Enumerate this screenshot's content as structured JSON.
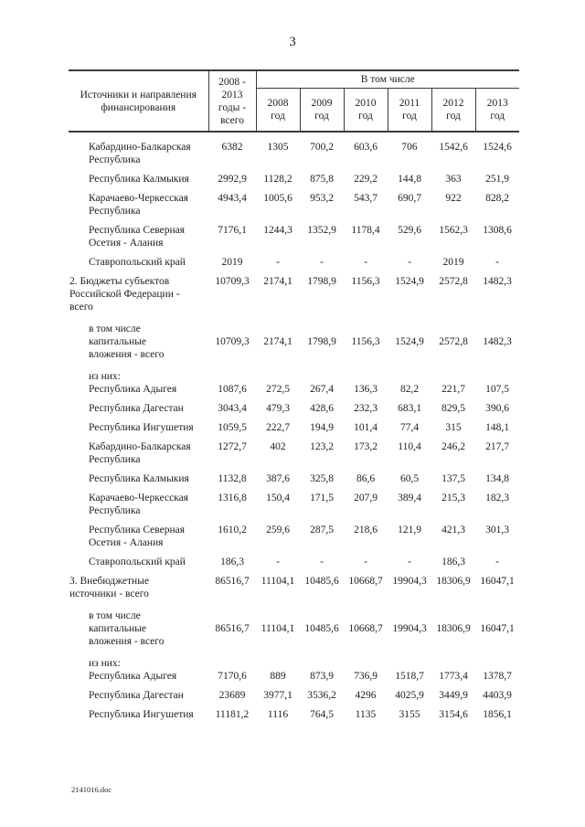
{
  "page": {
    "number": "3",
    "footer": "2141016.doc"
  },
  "table": {
    "header": {
      "col1": "Источники и направления\nфинансирования",
      "col2": "2008 -\n2013\nгоды -\nвсего",
      "group": "В том числе",
      "years": [
        "2008\nгод",
        "2009\nгод",
        "2010\nгод",
        "2011\nгод",
        "2012\nгод",
        "2013\nгод"
      ]
    },
    "rows": [
      {
        "type": "data",
        "indent": 1,
        "tight": false,
        "label": "Кабардино-Балкарская\nРеспублика",
        "values": [
          "6382",
          "1305",
          "700,2",
          "603,6",
          "706",
          "1542,6",
          "1524,6"
        ]
      },
      {
        "type": "data",
        "indent": 1,
        "tight": false,
        "label": "Республика Калмыкия",
        "values": [
          "2992,9",
          "1128,2",
          "875,8",
          "229,2",
          "144,8",
          "363",
          "251,9"
        ]
      },
      {
        "type": "data",
        "indent": 1,
        "tight": false,
        "label": "Карачаево-Черкесская\nРеспублика",
        "values": [
          "4943,4",
          "1005,6",
          "953,2",
          "543,7",
          "690,7",
          "922",
          "828,2"
        ]
      },
      {
        "type": "data",
        "indent": 1,
        "tight": false,
        "label": "Республика Северная\nОсетия - Алания",
        "values": [
          "7176,1",
          "1244,3",
          "1352,9",
          "1178,4",
          "529,6",
          "1562,3",
          "1308,6"
        ]
      },
      {
        "type": "data",
        "indent": 1,
        "tight": false,
        "label": "Ставропольский край",
        "values": [
          "2019",
          "-",
          "-",
          "-",
          "-",
          "2019",
          "-"
        ]
      },
      {
        "type": "data",
        "indent": 0,
        "tight": false,
        "label": "2. Бюджеты субъектов\nРоссийской Федерации -\nвсего",
        "values": [
          "10709,3",
          "2174,1",
          "1798,9",
          "1156,3",
          "1524,9",
          "2572,8",
          "1482,3"
        ]
      },
      {
        "type": "note",
        "indent": 1,
        "tight": false,
        "label": "в том числе"
      },
      {
        "type": "data",
        "indent": 1,
        "tight": true,
        "label": "капитальные\nвложения - всего",
        "values": [
          "10709,3",
          "2174,1",
          "1798,9",
          "1156,3",
          "1524,9",
          "2572,8",
          "1482,3"
        ]
      },
      {
        "type": "note",
        "indent": 1,
        "tight": false,
        "label": "из них:"
      },
      {
        "type": "data",
        "indent": 1,
        "tight": true,
        "label": "Республика Адыгея",
        "values": [
          "1087,6",
          "272,5",
          "267,4",
          "136,3",
          "82,2",
          "221,7",
          "107,5"
        ]
      },
      {
        "type": "data",
        "indent": 1,
        "tight": false,
        "label": "Республика Дагестан",
        "values": [
          "3043,4",
          "479,3",
          "428,6",
          "232,3",
          "683,1",
          "829,5",
          "390,6"
        ]
      },
      {
        "type": "data",
        "indent": 1,
        "tight": false,
        "label": "Республика Ингушетия",
        "values": [
          "1059,5",
          "222,7",
          "194,9",
          "101,4",
          "77,4",
          "315",
          "148,1"
        ]
      },
      {
        "type": "data",
        "indent": 1,
        "tight": false,
        "label": "Кабардино-Балкарская\nРеспублика",
        "values": [
          "1272,7",
          "402",
          "123,2",
          "173,2",
          "110,4",
          "246,2",
          "217,7"
        ]
      },
      {
        "type": "data",
        "indent": 1,
        "tight": false,
        "label": "Республика Калмыкия",
        "values": [
          "1132,8",
          "387,6",
          "325,8",
          "86,6",
          "60,5",
          "137,5",
          "134,8"
        ]
      },
      {
        "type": "data",
        "indent": 1,
        "tight": false,
        "label": "Карачаево-Черкесская\nРеспублика",
        "values": [
          "1316,8",
          "150,4",
          "171,5",
          "207,9",
          "389,4",
          "215,3",
          "182,3"
        ]
      },
      {
        "type": "data",
        "indent": 1,
        "tight": false,
        "label": "Республика Северная\nОсетия - Алания",
        "values": [
          "1610,2",
          "259,6",
          "287,5",
          "218,6",
          "121,9",
          "421,3",
          "301,3"
        ]
      },
      {
        "type": "data",
        "indent": 1,
        "tight": false,
        "label": "Ставропольский край",
        "values": [
          "186,3",
          "-",
          "-",
          "-",
          "-",
          "186,3",
          "-"
        ]
      },
      {
        "type": "data",
        "indent": 0,
        "tight": false,
        "label": "3. Внебюджетные\nисточники - всего",
        "values": [
          "86516,7",
          "11104,1",
          "10485,6",
          "10668,7",
          "19904,3",
          "18306,9",
          "16047,1"
        ]
      },
      {
        "type": "note",
        "indent": 1,
        "tight": false,
        "label": "в том числе"
      },
      {
        "type": "data",
        "indent": 1,
        "tight": true,
        "label": "капитальные\nвложения - всего",
        "values": [
          "86516,7",
          "11104,1",
          "10485,6",
          "10668,7",
          "19904,3",
          "18306,9",
          "16047,1"
        ]
      },
      {
        "type": "note",
        "indent": 1,
        "tight": false,
        "label": "из них:"
      },
      {
        "type": "data",
        "indent": 1,
        "tight": true,
        "label": "Республика Адыгея",
        "values": [
          "7170,6",
          "889",
          "873,9",
          "736,9",
          "1518,7",
          "1773,4",
          "1378,7"
        ]
      },
      {
        "type": "data",
        "indent": 1,
        "tight": false,
        "label": "Республика Дагестан",
        "values": [
          "23689",
          "3977,1",
          "3536,2",
          "4296",
          "4025,9",
          "3449,9",
          "4403,9"
        ]
      },
      {
        "type": "data",
        "indent": 1,
        "tight": false,
        "label": "Республика Ингушетия",
        "values": [
          "11181,2",
          "1116",
          "764,5",
          "1135",
          "3155",
          "3154,6",
          "1856,1"
        ]
      }
    ]
  }
}
